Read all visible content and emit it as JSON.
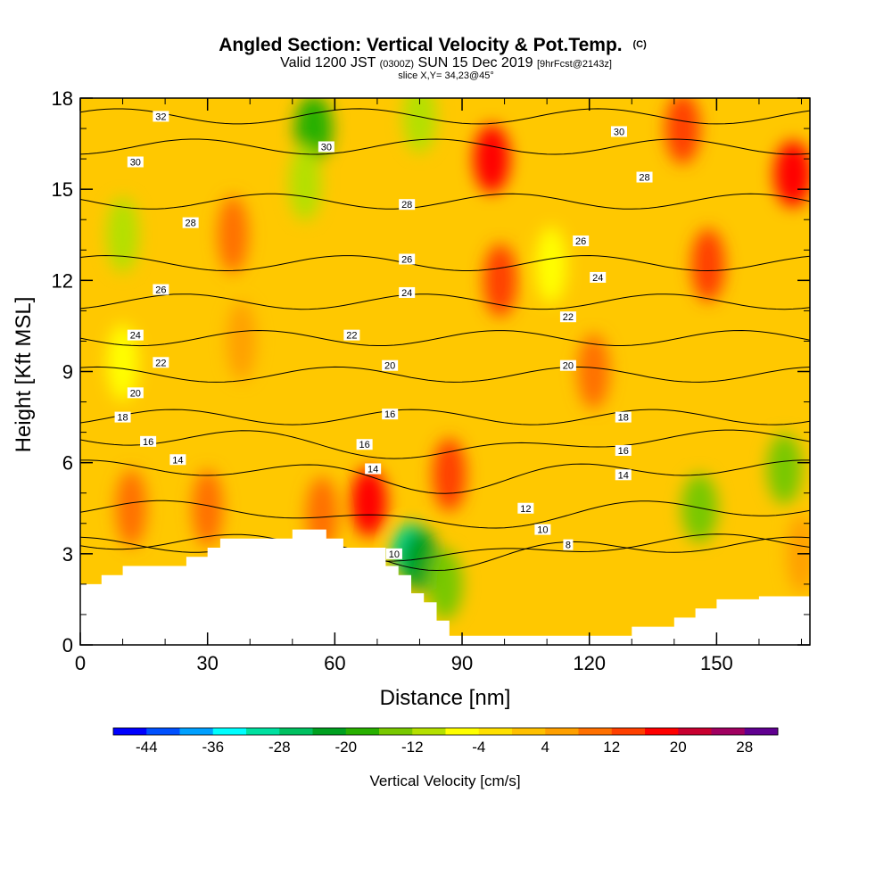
{
  "chart_data": {
    "type": "heatmap",
    "title": {
      "main": "Angled Section: Vertical Velocity & Pot.Temp.",
      "main_unit": "(C)",
      "valid_prefix": "Valid 1200 JST",
      "valid_utc": "(0300Z)",
      "valid_date": "SUN 15 Dec 2019",
      "forecast": "[9hrFcst@2143z]",
      "slice": "slice X,Y= 34,23@45°"
    },
    "xlabel": "Distance [nm]",
    "ylabel": "Height [Kft MSL]",
    "xlim": [
      0,
      172
    ],
    "ylim": [
      0,
      18
    ],
    "x_ticks": [
      "0",
      "30",
      "60",
      "90",
      "120",
      "150"
    ],
    "x_tick_values": [
      0,
      30,
      60,
      90,
      120,
      150
    ],
    "y_ticks": [
      "0",
      "3",
      "6",
      "9",
      "12",
      "15",
      "18"
    ],
    "y_tick_values": [
      0,
      3,
      6,
      9,
      12,
      15,
      18
    ],
    "colorbar": {
      "title": "Vertical Velocity [cm/s]",
      "labels": [
        "-44",
        "-36",
        "-28",
        "-20",
        "-12",
        "-4",
        "4",
        "12",
        "20",
        "28"
      ],
      "bins": [
        -48,
        -44,
        -40,
        -36,
        -32,
        -28,
        -24,
        -20,
        -16,
        -12,
        -8,
        -4,
        0,
        4,
        8,
        12,
        16,
        20,
        24,
        28,
        32
      ],
      "colors": [
        "#0000ff",
        "#0050ff",
        "#00a0ff",
        "#00ffff",
        "#00e0a0",
        "#00c060",
        "#00a020",
        "#28b000",
        "#78c800",
        "#b4e000",
        "#ffff00",
        "#ffe000",
        "#ffc000",
        "#ffa000",
        "#ff7000",
        "#ff4000",
        "#ff0000",
        "#c80030",
        "#a00060",
        "#600090"
      ]
    },
    "terrain_profile": {
      "x": [
        0,
        5,
        5,
        10,
        10,
        15,
        15,
        20,
        20,
        25,
        25,
        30,
        30,
        33,
        33,
        36,
        36,
        50,
        50,
        55,
        55,
        58,
        58,
        62,
        62,
        72,
        72,
        75,
        75,
        78,
        78,
        81,
        81,
        84,
        84,
        87,
        87,
        89,
        89,
        130,
        130,
        140,
        140,
        145,
        145,
        150,
        150,
        160,
        160,
        172
      ],
      "y": [
        2.0,
        2.0,
        2.3,
        2.3,
        2.6,
        2.6,
        2.6,
        2.6,
        2.6,
        2.6,
        2.9,
        2.9,
        3.2,
        3.2,
        3.5,
        3.5,
        3.5,
        3.5,
        3.8,
        3.8,
        3.8,
        3.8,
        3.5,
        3.5,
        3.2,
        3.2,
        2.6,
        2.6,
        2.3,
        2.3,
        1.7,
        1.7,
        1.4,
        1.4,
        0.8,
        0.8,
        0.3,
        0.3,
        0.3,
        0.3,
        0.6,
        0.6,
        0.9,
        0.9,
        1.2,
        1.2,
        1.5,
        1.5,
        1.6,
        1.6
      ]
    },
    "velocity_features": [
      {
        "x": 10,
        "y": 13.5,
        "value": -10
      },
      {
        "x": 10,
        "y": 9.3,
        "value": -8
      },
      {
        "x": 36,
        "y": 13.5,
        "value": 8
      },
      {
        "x": 38,
        "y": 10.0,
        "value": 6
      },
      {
        "x": 55,
        "y": 17.0,
        "value": -18
      },
      {
        "x": 53,
        "y": 15.2,
        "value": -10
      },
      {
        "x": 80,
        "y": 17.4,
        "value": -12
      },
      {
        "x": 97,
        "y": 16.0,
        "value": 16
      },
      {
        "x": 99,
        "y": 12.0,
        "value": 12
      },
      {
        "x": 111,
        "y": 12.5,
        "value": -8
      },
      {
        "x": 121,
        "y": 9.0,
        "value": 10
      },
      {
        "x": 142,
        "y": 17.0,
        "value": 14
      },
      {
        "x": 148,
        "y": 12.5,
        "value": 12
      },
      {
        "x": 168,
        "y": 15.5,
        "value": 18
      },
      {
        "x": 78,
        "y": 3.1,
        "value": -30
      },
      {
        "x": 80,
        "y": 2.8,
        "value": -22
      },
      {
        "x": 86,
        "y": 2.0,
        "value": -14
      },
      {
        "x": 68,
        "y": 4.7,
        "value": 16
      },
      {
        "x": 87,
        "y": 5.6,
        "value": 12
      },
      {
        "x": 57,
        "y": 4.3,
        "value": 10
      },
      {
        "x": 12,
        "y": 4.5,
        "value": 8
      },
      {
        "x": 30,
        "y": 4.5,
        "value": 8
      },
      {
        "x": 146,
        "y": 4.5,
        "value": -16
      },
      {
        "x": 166,
        "y": 5.8,
        "value": -14
      },
      {
        "x": 170,
        "y": 3.0,
        "value": 6
      }
    ],
    "theta_contour_labels": [
      {
        "x": 19,
        "y": 17.4,
        "label": "32"
      },
      {
        "x": 127,
        "y": 16.9,
        "label": "30"
      },
      {
        "x": 13,
        "y": 15.9,
        "label": "30"
      },
      {
        "x": 58,
        "y": 16.4,
        "label": "30"
      },
      {
        "x": 133,
        "y": 15.4,
        "label": "28"
      },
      {
        "x": 26,
        "y": 13.9,
        "label": "28"
      },
      {
        "x": 77,
        "y": 14.5,
        "label": "28"
      },
      {
        "x": 118,
        "y": 13.3,
        "label": "26"
      },
      {
        "x": 77,
        "y": 12.7,
        "label": "26"
      },
      {
        "x": 19,
        "y": 11.7,
        "label": "26"
      },
      {
        "x": 122,
        "y": 12.1,
        "label": "24"
      },
      {
        "x": 77,
        "y": 11.6,
        "label": "24"
      },
      {
        "x": 13,
        "y": 10.2,
        "label": "24"
      },
      {
        "x": 115,
        "y": 10.8,
        "label": "22"
      },
      {
        "x": 64,
        "y": 10.2,
        "label": "22"
      },
      {
        "x": 19,
        "y": 9.3,
        "label": "22"
      },
      {
        "x": 115,
        "y": 9.2,
        "label": "20"
      },
      {
        "x": 73,
        "y": 9.2,
        "label": "20"
      },
      {
        "x": 13,
        "y": 8.3,
        "label": "20"
      },
      {
        "x": 128,
        "y": 7.5,
        "label": "18"
      },
      {
        "x": 10,
        "y": 7.5,
        "label": "18"
      },
      {
        "x": 73,
        "y": 7.6,
        "label": "16"
      },
      {
        "x": 128,
        "y": 6.4,
        "label": "16"
      },
      {
        "x": 16,
        "y": 6.7,
        "label": "16"
      },
      {
        "x": 67,
        "y": 6.6,
        "label": "16"
      },
      {
        "x": 23,
        "y": 6.1,
        "label": "14"
      },
      {
        "x": 128,
        "y": 5.6,
        "label": "14"
      },
      {
        "x": 69,
        "y": 5.8,
        "label": "14"
      },
      {
        "x": 105,
        "y": 4.5,
        "label": "12"
      },
      {
        "x": 109,
        "y": 3.8,
        "label": "10"
      },
      {
        "x": 74,
        "y": 3.0,
        "label": "10"
      },
      {
        "x": 115,
        "y": 3.3,
        "label": "8"
      }
    ]
  }
}
